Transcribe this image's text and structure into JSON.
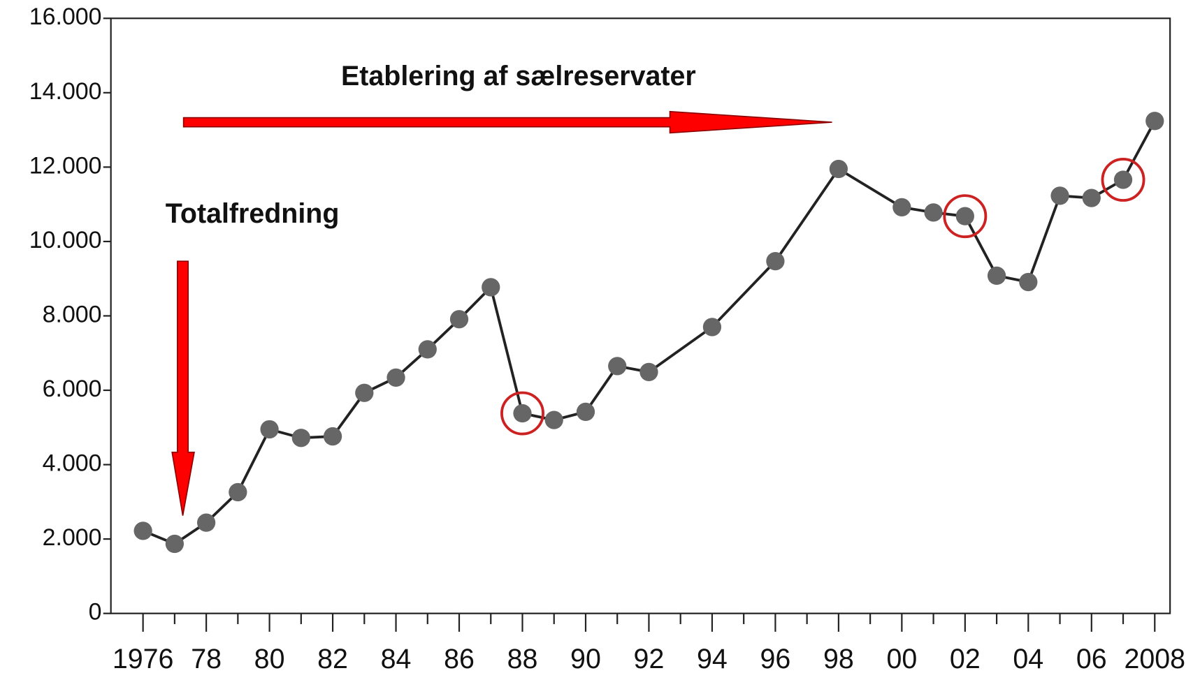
{
  "chart_data": {
    "type": "line",
    "x": [
      1976,
      1977,
      1978,
      1979,
      1980,
      1981,
      1982,
      1983,
      1984,
      1985,
      1986,
      1987,
      1988,
      1989,
      1990,
      1991,
      1992,
      1994,
      1996,
      1998,
      2000,
      2001,
      2002,
      2003,
      2004,
      2005,
      2006,
      2007,
      2008
    ],
    "series": [
      {
        "color": "#666666",
        "values": [
          2220,
          1870,
          2440,
          3260,
          4950,
          4720,
          4760,
          5930,
          6340,
          7100,
          7910,
          8770,
          5380,
          5200,
          5420,
          6650,
          6490,
          7700,
          9470,
          11950,
          10920,
          10780,
          10680,
          9080,
          8910,
          11230,
          11170,
          11660,
          13240
        ]
      }
    ],
    "xlim": [
      1976,
      2008
    ],
    "xticks": [
      {
        "value": 1976,
        "label": "1976"
      },
      {
        "value": 1978,
        "label": "78"
      },
      {
        "value": 1980,
        "label": "80"
      },
      {
        "value": 1982,
        "label": "82"
      },
      {
        "value": 1984,
        "label": "84"
      },
      {
        "value": 1986,
        "label": "86"
      },
      {
        "value": 1988,
        "label": "88"
      },
      {
        "value": 1990,
        "label": "90"
      },
      {
        "value": 1992,
        "label": "92"
      },
      {
        "value": 1994,
        "label": "94"
      },
      {
        "value": 1996,
        "label": "96"
      },
      {
        "value": 1998,
        "label": "98"
      },
      {
        "value": 2000,
        "label": "00"
      },
      {
        "value": 2002,
        "label": "02"
      },
      {
        "value": 2004,
        "label": "04"
      },
      {
        "value": 2006,
        "label": "06"
      },
      {
        "value": 2008,
        "label": "2008"
      }
    ],
    "minor_xticks": [
      1977,
      1979,
      1981,
      1983,
      1985,
      1987,
      1989,
      1991,
      1993,
      1995,
      1997,
      1999,
      2001,
      2003,
      2005,
      2007
    ],
    "ylim": [
      0,
      16000
    ],
    "yticks": [
      0,
      {
        "value": 2000,
        "label": "2.000"
      },
      {
        "value": 4000,
        "label": "4.000"
      },
      {
        "value": 6000,
        "label": "6.000"
      },
      {
        "value": 8000,
        "label": "8.000"
      },
      {
        "value": 10000,
        "label": "10.000"
      },
      {
        "value": 12000,
        "label": "12.000"
      },
      {
        "value": 14000,
        "label": "14.000"
      },
      {
        "value": 16000,
        "label": "16.000"
      }
    ],
    "highlighted_x": [
      1988,
      2002,
      2007
    ],
    "highlight_color": "#cc2222",
    "annotations": [
      "Etablering af sælreservater",
      "Totalfredning"
    ]
  }
}
